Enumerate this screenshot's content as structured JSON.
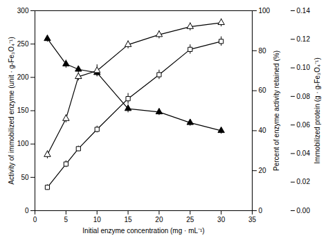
{
  "chart_data": {
    "type": "line",
    "x": [
      2,
      5,
      7,
      10,
      15,
      20,
      25,
      30
    ],
    "xlabel": "Initial enzyme concentration (mg · mL⁻¹)",
    "ylabel": "Activity of immobilized enzyme (unit · g-Fe₃O₄⁻¹)",
    "y2label": "Percent of enzyme activity retained (%)",
    "y3label": "Immobilized protein (g · g-Fe₃O₄⁻¹)",
    "xlim": [
      0,
      35
    ],
    "xticks": [
      0,
      5,
      10,
      15,
      20,
      25,
      30,
      35
    ],
    "ylim": [
      0,
      300
    ],
    "yticks": [
      0,
      50,
      100,
      150,
      200,
      250,
      300
    ],
    "y2lim": [
      0,
      100
    ],
    "y2ticks": [
      0,
      20,
      40,
      60,
      80,
      100
    ],
    "y3lim": [
      0,
      0.14
    ],
    "y3ticks": [
      {
        "value": 0,
        "label": "0.00"
      },
      0.02,
      0.04,
      0.06,
      0.08,
      {
        "value": 0.1,
        "label": "0.10"
      },
      0.12,
      0.14
    ],
    "grid": false,
    "series": [
      {
        "values": [
          258,
          220,
          212,
          207,
          153,
          148,
          132,
          120
        ],
        "errors": [
          5,
          6,
          5,
          5,
          6,
          5,
          5,
          5
        ],
        "color": "black",
        "marker": "triangle"
      },
      {
        "values": [
          35,
          70,
          93,
          122,
          168,
          204,
          242,
          254
        ],
        "errors": [
          4,
          5,
          4,
          5,
          8,
          7,
          7,
          7
        ],
        "color": "black",
        "marker": "square-open"
      },
      {
        "values": [
          28,
          46,
          67,
          70,
          83,
          88,
          92,
          94
        ],
        "errors": [
          2,
          2,
          2,
          3,
          2,
          2,
          2,
          2
        ],
        "color": "black",
        "marker": "triangle-open",
        "axis": "y2"
      }
    ]
  }
}
